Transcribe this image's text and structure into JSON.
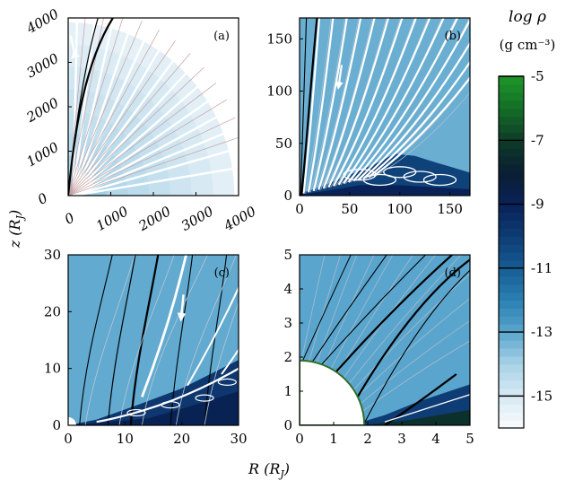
{
  "figure": {
    "ylabel": "z (R",
    "ylabel_sub": "J",
    "xlabel": "R (R",
    "xlabel_sub": "J"
  },
  "colorbar": {
    "title": "log ρ",
    "units": "(g cm⁻³)",
    "ticks": [
      "-5",
      "-7",
      "-9",
      "-11",
      "-13",
      "-15"
    ],
    "range": [
      -16,
      -5
    ]
  },
  "chart_data": [
    {
      "type": "heatmap",
      "panel_label": "(a)",
      "xlim": [
        0,
        4000
      ],
      "ylim": [
        0,
        4000
      ],
      "xticks": [
        "0",
        "1000",
        "2000",
        "3000",
        "4000"
      ],
      "yticks": [
        "0",
        "1000",
        "2000",
        "3000",
        "4000"
      ],
      "tick_rotation": -30,
      "domain": "quarter-sphere",
      "arrow": "yes"
    },
    {
      "type": "heatmap",
      "panel_label": "(b)",
      "xlim": [
        0,
        170
      ],
      "ylim": [
        0,
        170
      ],
      "xticks": [
        "0",
        "50",
        "100",
        "150"
      ],
      "yticks": [
        "0",
        "50",
        "100",
        "150"
      ],
      "arrow": "yes"
    },
    {
      "type": "heatmap",
      "panel_label": "(c)",
      "xlim": [
        0,
        30
      ],
      "ylim": [
        0,
        30
      ],
      "xticks": [
        "0",
        "10",
        "20",
        "30"
      ],
      "yticks": [
        "0",
        "10",
        "20",
        "30"
      ],
      "arrow": "yes"
    },
    {
      "type": "heatmap",
      "panel_label": "(d)",
      "xlim": [
        0,
        5
      ],
      "ylim": [
        0,
        5
      ],
      "xticks": [
        "0",
        "1",
        "2",
        "3",
        "4",
        "5"
      ],
      "yticks": [
        "0",
        "1",
        "2",
        "3",
        "4",
        "5"
      ],
      "planet_radius": 1.9,
      "arrow": "no"
    }
  ]
}
